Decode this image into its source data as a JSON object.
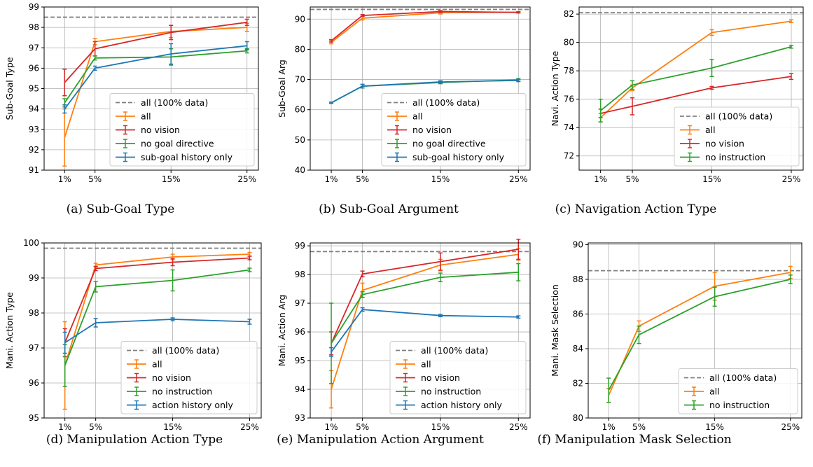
{
  "colors": {
    "all": "#ff7f0e",
    "no_vision": "#d62728",
    "no_goal_or_instruction": "#2ca02c",
    "history_only": "#1f77b4",
    "reference": "#808080",
    "grid": "#b0b0b0"
  },
  "chart_data": [
    {
      "id": "a",
      "type": "line",
      "caption": "(a)  Sub-Goal Type",
      "ylabel": "Sub-Goal Type",
      "x": [
        1,
        5,
        15,
        25
      ],
      "xticklabels": [
        "1%",
        "5%",
        "15%",
        "25%"
      ],
      "ylim": [
        91,
        99
      ],
      "yticks": [
        91,
        92,
        93,
        94,
        95,
        96,
        97,
        98,
        99
      ],
      "grid": true,
      "legend_position": "lower-right",
      "reference": {
        "name": "all (100% data)",
        "value": 98.5
      },
      "series": [
        {
          "name": "all",
          "color": "#ff7f0e",
          "values": [
            92.6,
            97.3,
            97.8,
            98.0
          ],
          "err": [
            1.4,
            0.15,
            0.3,
            0.2
          ]
        },
        {
          "name": "no vision",
          "color": "#d62728",
          "values": [
            95.3,
            96.95,
            97.75,
            98.25
          ],
          "err": [
            0.65,
            0.35,
            0.35,
            0.15
          ]
        },
        {
          "name": "no goal directive",
          "color": "#2ca02c",
          "values": [
            94.3,
            96.5,
            96.55,
            96.85
          ],
          "err": [
            0.2,
            0.1,
            0.4,
            0.1
          ]
        },
        {
          "name": "sub-goal history only",
          "color": "#1f77b4",
          "values": [
            94.0,
            96.0,
            96.7,
            97.1
          ],
          "err": [
            0.2,
            0.1,
            0.5,
            0.2
          ]
        }
      ]
    },
    {
      "id": "b",
      "type": "line",
      "caption": "(b)  Sub-Goal Argument",
      "ylabel": "Sub-Goal Arg",
      "x": [
        1,
        5,
        15,
        25
      ],
      "xticklabels": [
        "1%",
        "5%",
        "15%",
        "25%"
      ],
      "ylim": [
        40,
        94
      ],
      "yticks": [
        40,
        50,
        60,
        70,
        80,
        90
      ],
      "grid": true,
      "legend_position": "lower-right",
      "reference": {
        "name": "all (100% data)",
        "value": 93.2
      },
      "series": [
        {
          "name": "all",
          "color": "#ff7f0e",
          "values": [
            82.3,
            90.3,
            92.1,
            92.3
          ],
          "err": [
            0.5,
            0.6,
            0.4,
            0.2
          ]
        },
        {
          "name": "no vision",
          "color": "#d62728",
          "values": [
            82.8,
            91.2,
            92.5,
            92.2
          ],
          "err": [
            0.4,
            0.3,
            0.3,
            0.2
          ]
        },
        {
          "name": "no goal directive",
          "color": "#2ca02c",
          "values": [
            62.3,
            67.8,
            69.0,
            69.9
          ],
          "err": [
            0.2,
            0.6,
            0.4,
            0.4
          ]
        },
        {
          "name": "sub-goal history only",
          "color": "#1f77b4",
          "values": [
            62.3,
            67.8,
            69.2,
            69.7
          ],
          "err": [
            0.2,
            0.6,
            0.4,
            0.4
          ]
        }
      ]
    },
    {
      "id": "c",
      "type": "line",
      "caption": "(c)  Navigation Action Type",
      "ylabel": "Navi. Action Type",
      "x": [
        1,
        5,
        15,
        25
      ],
      "xticklabels": [
        "1%",
        "5%",
        "15%",
        "25%"
      ],
      "ylim": [
        71,
        82.5
      ],
      "yticks": [
        72,
        74,
        76,
        78,
        80,
        82
      ],
      "grid": true,
      "legend_position": "lower-right",
      "reference": {
        "name": "all (100% data)",
        "value": 82.1
      },
      "series": [
        {
          "name": "all",
          "color": "#ff7f0e",
          "values": [
            74.7,
            76.8,
            80.7,
            81.5
          ],
          "err": [
            0.3,
            0.2,
            0.2,
            0.1
          ]
        },
        {
          "name": "no vision",
          "color": "#d62728",
          "values": [
            75.0,
            75.5,
            76.8,
            77.6
          ],
          "err": [
            0.3,
            0.6,
            0.1,
            0.2
          ]
        },
        {
          "name": "no instruction",
          "color": "#2ca02c",
          "values": [
            75.2,
            77.0,
            78.2,
            79.7
          ],
          "err": [
            0.8,
            0.3,
            0.6,
            0.1
          ]
        }
      ]
    },
    {
      "id": "d",
      "type": "line",
      "caption": "(d)  Manipulation Action Type",
      "ylabel": "Mani. Action Type",
      "x": [
        1,
        5,
        15,
        25
      ],
      "xticklabels": [
        "1%",
        "5%",
        "15%",
        "25%"
      ],
      "ylim": [
        95,
        100
      ],
      "yticks": [
        95,
        96,
        97,
        98,
        99,
        100
      ],
      "grid": true,
      "legend_position": "lower-right",
      "reference": {
        "name": "all (100% data)",
        "value": 99.85
      },
      "series": [
        {
          "name": "all",
          "color": "#ff7f0e",
          "values": [
            96.5,
            99.37,
            99.6,
            99.68
          ],
          "err": [
            1.25,
            0.05,
            0.08,
            0.05
          ]
        },
        {
          "name": "no vision",
          "color": "#d62728",
          "values": [
            97.15,
            99.27,
            99.45,
            99.57
          ],
          "err": [
            0.4,
            0.06,
            0.1,
            0.05
          ]
        },
        {
          "name": "no instruction",
          "color": "#2ca02c",
          "values": [
            96.5,
            98.75,
            98.93,
            99.23
          ],
          "err": [
            0.6,
            0.15,
            0.3,
            0.05
          ]
        },
        {
          "name": "action history only",
          "color": "#1f77b4",
          "values": [
            97.15,
            97.72,
            97.82,
            97.75
          ],
          "err": [
            0.3,
            0.12,
            0.04,
            0.07
          ]
        }
      ]
    },
    {
      "id": "e",
      "type": "line",
      "caption": "(e)  Manipulation Action Argument",
      "ylabel": "Mani. Action Arg",
      "x": [
        1,
        5,
        15,
        25
      ],
      "xticklabels": [
        "1%",
        "5%",
        "15%",
        "25%"
      ],
      "ylim": [
        93,
        99.1
      ],
      "yticks": [
        93,
        94,
        95,
        96,
        97,
        98,
        99
      ],
      "grid": true,
      "legend_position": "lower-right",
      "reference": {
        "name": "all (100% data)",
        "value": 98.8
      },
      "series": [
        {
          "name": "all",
          "color": "#ff7f0e",
          "values": [
            94.0,
            97.45,
            98.33,
            98.7
          ],
          "err": [
            0.65,
            0.25,
            0.2,
            0.2
          ]
        },
        {
          "name": "no vision",
          "color": "#d62728",
          "values": [
            95.6,
            98.02,
            98.45,
            98.88
          ],
          "err": [
            0.4,
            0.1,
            0.3,
            0.35
          ]
        },
        {
          "name": "no instruction",
          "color": "#2ca02c",
          "values": [
            95.6,
            97.3,
            97.9,
            98.08
          ],
          "err": [
            1.4,
            0.1,
            0.15,
            0.3
          ]
        },
        {
          "name": "action history only",
          "color": "#1f77b4",
          "values": [
            95.3,
            96.78,
            96.57,
            96.52
          ],
          "err": [
            0.15,
            0.06,
            0.04,
            0.04
          ]
        }
      ]
    },
    {
      "id": "f",
      "type": "line",
      "caption": "(f)  Manipulation Mask Selection",
      "ylabel": "Mani. Mask Selection",
      "x": [
        1,
        5,
        15,
        25
      ],
      "xticklabels": [
        "1%",
        "5%",
        "15%",
        "25%"
      ],
      "ylim": [
        80,
        90.1
      ],
      "yticks": [
        80,
        82,
        84,
        86,
        88,
        90
      ],
      "grid": true,
      "legend_position": "lower-right",
      "reference": {
        "name": "all (100% data)",
        "value": 88.5
      },
      "series": [
        {
          "name": "all",
          "color": "#ff7f0e",
          "values": [
            81.3,
            85.3,
            87.6,
            88.4
          ],
          "err": [
            0.4,
            0.3,
            0.8,
            0.35
          ]
        },
        {
          "name": "no instruction",
          "color": "#2ca02c",
          "values": [
            81.6,
            84.8,
            87.0,
            88.0
          ],
          "err": [
            0.7,
            0.5,
            0.55,
            0.25
          ]
        }
      ]
    }
  ]
}
